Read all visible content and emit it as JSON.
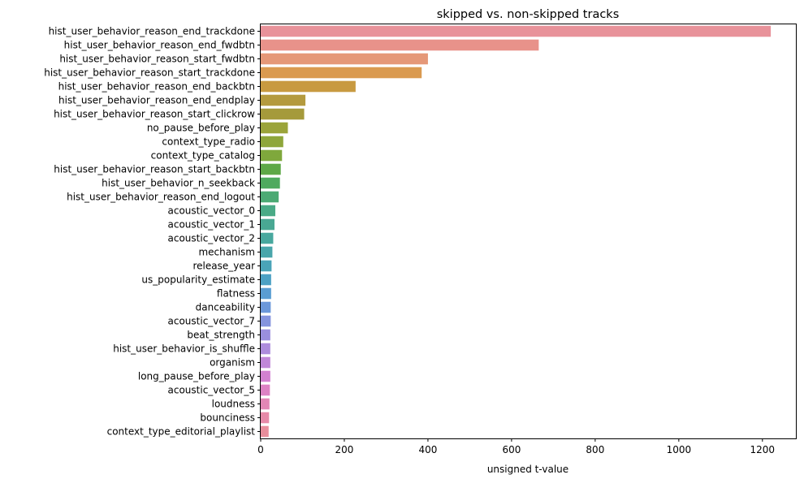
{
  "chart_data": {
    "type": "bar",
    "orientation": "horizontal",
    "title": "skipped vs. non-skipped tracks",
    "xlabel": "unsigned t-value",
    "ylabel": "",
    "xlim": [
      0,
      1280
    ],
    "xticks": [
      0,
      200,
      400,
      600,
      800,
      1000,
      1200
    ],
    "grid": false,
    "legend": "none",
    "categories": [
      "hist_user_behavior_reason_end_trackdone",
      "hist_user_behavior_reason_end_fwdbtn",
      "hist_user_behavior_reason_start_fwdbtn",
      "hist_user_behavior_reason_start_trackdone",
      "hist_user_behavior_reason_end_backbtn",
      "hist_user_behavior_reason_end_endplay",
      "hist_user_behavior_reason_start_clickrow",
      "no_pause_before_play",
      "context_type_radio",
      "context_type_catalog",
      "hist_user_behavior_reason_start_backbtn",
      "hist_user_behavior_n_seekback",
      "hist_user_behavior_reason_end_logout",
      "acoustic_vector_0",
      "acoustic_vector_1",
      "acoustic_vector_2",
      "mechanism",
      "release_year",
      "us_popularity_estimate",
      "flatness",
      "danceability",
      "acoustic_vector_7",
      "beat_strength",
      "hist_user_behavior_is_shuffle",
      "organism",
      "long_pause_before_play",
      "acoustic_vector_5",
      "loudness",
      "bounciness",
      "context_type_editorial_playlist"
    ],
    "values": [
      1220,
      665,
      400,
      385,
      227,
      107,
      104,
      65,
      54,
      51,
      48,
      46,
      43,
      35,
      33,
      30,
      28,
      26,
      25,
      25,
      24,
      24,
      23,
      23,
      23,
      23,
      22,
      21,
      20,
      19
    ],
    "colors": [
      "#e8929a",
      "#e8928a",
      "#e59878",
      "#da9a50",
      "#c89a40",
      "#b49a3e",
      "#a59a3b",
      "#9ba43a",
      "#8ea63a",
      "#7fa83c",
      "#5ea847",
      "#4faa5e",
      "#4caa74",
      "#4aaa86",
      "#49a893",
      "#48a89e",
      "#49a6ab",
      "#4aa4b8",
      "#4ca1c4",
      "#599dd2",
      "#6c98da",
      "#8594de",
      "#9a8fde",
      "#ad8cdc",
      "#c087d8",
      "#d281d0",
      "#dd82c4",
      "#e287b6",
      "#e68aa8",
      "#e88e9c"
    ]
  }
}
